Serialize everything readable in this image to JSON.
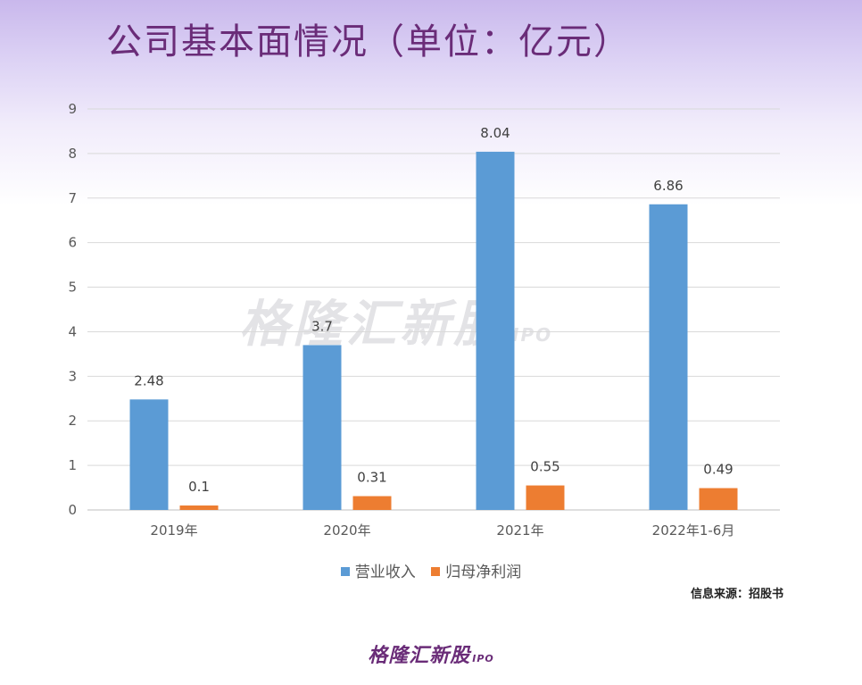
{
  "header": {
    "title": "公司基本面情况（单位：亿元）"
  },
  "watermark": {
    "text": "格隆汇新股",
    "suffix": "IPO"
  },
  "chart_data": {
    "type": "bar",
    "categories": [
      "2019年",
      "2020年",
      "2021年",
      "2022年1-6月"
    ],
    "series": [
      {
        "name": "营业收入",
        "values": [
          2.48,
          3.7,
          8.04,
          6.86
        ],
        "labels": [
          "2.48",
          "3.7",
          "8.04",
          "6.86"
        ],
        "color": "#5b9bd5"
      },
      {
        "name": "归母净利润",
        "values": [
          0.1,
          0.31,
          0.55,
          0.49
        ],
        "labels": [
          "0.1",
          "0.31",
          "0.55",
          "0.49"
        ],
        "color": "#ed7d31"
      }
    ],
    "yticks": [
      "0",
      "1",
      "2",
      "3",
      "4",
      "5",
      "6",
      "7",
      "8",
      "9"
    ],
    "ylim": [
      0,
      9
    ],
    "grid": true,
    "legend_position": "bottom"
  },
  "source": {
    "text": "信息来源：招股书"
  },
  "footer": {
    "brand": "格隆汇新股",
    "suffix": "IPO"
  }
}
